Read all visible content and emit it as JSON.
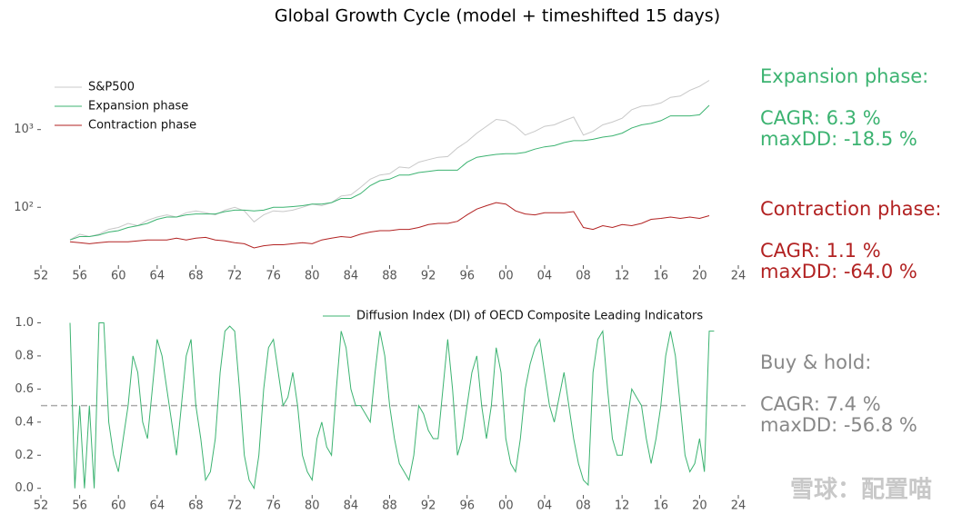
{
  "title": "Global Growth Cycle (model + timeshifted 15 days)",
  "chart_data": [
    {
      "type": "line",
      "log_y": true,
      "legend": "upper left",
      "xlim": [
        1952,
        2024
      ],
      "ylim": [
        18,
        5400
      ],
      "xticks": [
        {
          "value": 1952,
          "label": "52"
        },
        {
          "value": 1956,
          "label": "56"
        },
        {
          "value": 1960,
          "label": "60"
        },
        {
          "value": 1964,
          "label": "64"
        },
        {
          "value": 1968,
          "label": "68"
        },
        {
          "value": 1972,
          "label": "72"
        },
        {
          "value": 1976,
          "label": "76"
        },
        {
          "value": 1980,
          "label": "80"
        },
        {
          "value": 1984,
          "label": "84"
        },
        {
          "value": 1988,
          "label": "88"
        },
        {
          "value": 1992,
          "label": "92"
        },
        {
          "value": 1996,
          "label": "96"
        },
        {
          "value": 2000,
          "label": "00"
        },
        {
          "value": 2004,
          "label": "04"
        },
        {
          "value": 2008,
          "label": "08"
        },
        {
          "value": 2012,
          "label": "12"
        },
        {
          "value": 2016,
          "label": "16"
        },
        {
          "value": 2020,
          "label": "20"
        },
        {
          "value": 2024,
          "label": "24"
        }
      ],
      "yticks": [
        {
          "value": 100,
          "label": "10²"
        },
        {
          "value": 1000,
          "label": "10³"
        }
      ],
      "x": [
        1955,
        1956,
        1957,
        1958,
        1959,
        1960,
        1961,
        1962,
        1963,
        1964,
        1965,
        1966,
        1967,
        1968,
        1969,
        1970,
        1971,
        1972,
        1973,
        1974,
        1975,
        1976,
        1977,
        1978,
        1979,
        1980,
        1981,
        1982,
        1983,
        1984,
        1985,
        1986,
        1987,
        1988,
        1989,
        1990,
        1991,
        1992,
        1993,
        1994,
        1995,
        1996,
        1997,
        1998,
        1999,
        2000,
        2001,
        2002,
        2003,
        2004,
        2005,
        2006,
        2007,
        2008,
        2009,
        2010,
        2011,
        2012,
        2013,
        2014,
        2015,
        2016,
        2017,
        2018,
        2019,
        2020,
        2021
      ],
      "series": [
        {
          "name": "S&P500",
          "color": "#c8c8c8",
          "values": [
            38,
            45,
            42,
            45,
            52,
            55,
            62,
            58,
            68,
            75,
            80,
            75,
            85,
            90,
            85,
            80,
            92,
            100,
            90,
            65,
            80,
            90,
            88,
            92,
            100,
            110,
            105,
            115,
            140,
            145,
            180,
            230,
            260,
            270,
            330,
            320,
            380,
            410,
            440,
            450,
            580,
            700,
            900,
            1100,
            1350,
            1300,
            1100,
            850,
            950,
            1100,
            1150,
            1300,
            1450,
            850,
            950,
            1150,
            1250,
            1400,
            1800,
            2000,
            2050,
            2200,
            2600,
            2700,
            3200,
            3600,
            4300
          ]
        },
        {
          "name": "Expansion phase",
          "color": "#3cb371",
          "values": [
            38,
            42,
            42,
            44,
            48,
            50,
            55,
            58,
            62,
            70,
            75,
            75,
            80,
            82,
            82,
            82,
            88,
            92,
            92,
            90,
            92,
            100,
            100,
            102,
            105,
            110,
            110,
            115,
            130,
            130,
            150,
            190,
            220,
            230,
            260,
            260,
            280,
            290,
            300,
            300,
            300,
            380,
            440,
            460,
            480,
            490,
            490,
            510,
            560,
            600,
            620,
            680,
            720,
            720,
            750,
            800,
            830,
            900,
            1050,
            1150,
            1200,
            1300,
            1500,
            1500,
            1500,
            1550,
            2050
          ]
        },
        {
          "name": "Contraction phase",
          "color": "#b22222",
          "values": [
            36,
            35,
            34,
            35,
            36,
            36,
            36,
            37,
            38,
            38,
            38,
            40,
            38,
            40,
            41,
            38,
            37,
            35,
            34,
            30,
            32,
            33,
            33,
            34,
            35,
            34,
            38,
            40,
            42,
            41,
            45,
            48,
            50,
            50,
            52,
            52,
            55,
            60,
            62,
            62,
            66,
            80,
            95,
            105,
            115,
            110,
            90,
            82,
            80,
            85,
            85,
            85,
            88,
            55,
            52,
            58,
            55,
            60,
            58,
            62,
            70,
            72,
            75,
            72,
            75,
            72,
            78
          ]
        }
      ]
    },
    {
      "type": "line",
      "legend": "upper right",
      "hline": 0.5,
      "xlim": [
        1952,
        2024
      ],
      "ylim": [
        -0.04,
        1.03
      ],
      "xticks": [
        {
          "value": 1952,
          "label": "52"
        },
        {
          "value": 1956,
          "label": "56"
        },
        {
          "value": 1960,
          "label": "60"
        },
        {
          "value": 1964,
          "label": "64"
        },
        {
          "value": 1968,
          "label": "68"
        },
        {
          "value": 1972,
          "label": "72"
        },
        {
          "value": 1976,
          "label": "76"
        },
        {
          "value": 1980,
          "label": "80"
        },
        {
          "value": 1984,
          "label": "84"
        },
        {
          "value": 1988,
          "label": "88"
        },
        {
          "value": 1992,
          "label": "92"
        },
        {
          "value": 1996,
          "label": "96"
        },
        {
          "value": 2000,
          "label": "00"
        },
        {
          "value": 2004,
          "label": "04"
        },
        {
          "value": 2008,
          "label": "08"
        },
        {
          "value": 2012,
          "label": "12"
        },
        {
          "value": 2016,
          "label": "16"
        },
        {
          "value": 2020,
          "label": "20"
        },
        {
          "value": 2024,
          "label": "24"
        }
      ],
      "yticks": [
        {
          "value": 0,
          "label": "0.0"
        },
        0.2,
        0.4,
        0.6,
        0.8,
        {
          "value": 1,
          "label": "1.0"
        }
      ],
      "x": [
        1955,
        1955.5,
        1956,
        1956.5,
        1957,
        1957.5,
        1958,
        1958.5,
        1959,
        1959.5,
        1960,
        1960.5,
        1961,
        1961.5,
        1962,
        1962.5,
        1963,
        1963.5,
        1964,
        1964.5,
        1965,
        1965.5,
        1966,
        1966.5,
        1967,
        1967.5,
        1968,
        1968.5,
        1969,
        1969.5,
        1970,
        1970.5,
        1971,
        1971.5,
        1972,
        1972.5,
        1973,
        1973.5,
        1974,
        1974.5,
        1975,
        1975.5,
        1976,
        1976.5,
        1977,
        1977.5,
        1978,
        1978.5,
        1979,
        1979.5,
        1980,
        1980.5,
        1981,
        1981.5,
        1982,
        1982.5,
        1983,
        1983.5,
        1984,
        1984.5,
        1985,
        1985.5,
        1986,
        1986.5,
        1987,
        1987.5,
        1988,
        1988.5,
        1989,
        1989.5,
        1990,
        1990.5,
        1991,
        1991.5,
        1992,
        1992.5,
        1993,
        1993.5,
        1994,
        1994.5,
        1995,
        1995.5,
        1996,
        1996.5,
        1997,
        1997.5,
        1998,
        1998.5,
        1999,
        1999.5,
        2000,
        2000.5,
        2001,
        2001.5,
        2002,
        2002.5,
        2003,
        2003.5,
        2004,
        2004.5,
        2005,
        2005.5,
        2006,
        2006.5,
        2007,
        2007.5,
        2008,
        2008.5,
        2009,
        2009.5,
        2010,
        2010.5,
        2011,
        2011.5,
        2012,
        2012.5,
        2013,
        2013.5,
        2014,
        2014.5,
        2015,
        2015.5,
        2016,
        2016.5,
        2017,
        2017.5,
        2018,
        2018.5,
        2019,
        2019.5,
        2020,
        2020.5,
        2021,
        2021.5
      ],
      "series": [
        {
          "name": "Diffusion Index (DI) of OECD Composite Leading Indicators",
          "color": "#3cb371",
          "values": [
            1.0,
            0.0,
            0.5,
            0.0,
            0.5,
            0.0,
            1.0,
            1.0,
            0.4,
            0.2,
            0.1,
            0.3,
            0.5,
            0.8,
            0.7,
            0.4,
            0.3,
            0.6,
            0.9,
            0.8,
            0.6,
            0.4,
            0.2,
            0.5,
            0.8,
            0.9,
            0.5,
            0.3,
            0.05,
            0.1,
            0.3,
            0.7,
            0.95,
            0.98,
            0.95,
            0.6,
            0.2,
            0.05,
            0.0,
            0.2,
            0.6,
            0.85,
            0.9,
            0.7,
            0.5,
            0.55,
            0.7,
            0.5,
            0.2,
            0.1,
            0.05,
            0.3,
            0.4,
            0.25,
            0.2,
            0.6,
            0.95,
            0.85,
            0.6,
            0.5,
            0.5,
            0.45,
            0.4,
            0.7,
            0.95,
            0.8,
            0.5,
            0.3,
            0.15,
            0.1,
            0.05,
            0.2,
            0.5,
            0.45,
            0.35,
            0.3,
            0.3,
            0.6,
            0.9,
            0.6,
            0.2,
            0.3,
            0.5,
            0.7,
            0.8,
            0.5,
            0.3,
            0.5,
            0.85,
            0.7,
            0.3,
            0.15,
            0.1,
            0.3,
            0.6,
            0.75,
            0.85,
            0.9,
            0.7,
            0.5,
            0.4,
            0.55,
            0.7,
            0.5,
            0.3,
            0.15,
            0.05,
            0.02,
            0.7,
            0.9,
            0.95,
            0.6,
            0.3,
            0.2,
            0.2,
            0.4,
            0.6,
            0.55,
            0.5,
            0.3,
            0.15,
            0.3,
            0.5,
            0.8,
            0.95,
            0.8,
            0.5,
            0.2,
            0.1,
            0.15,
            0.3,
            0.1,
            0.95,
            0.95
          ]
        }
      ]
    }
  ],
  "annotations": [
    {
      "heading": "Expansion phase:",
      "cagr": "CAGR: 6.3 %",
      "maxdd": "maxDD: -18.5 %",
      "color": "#3cb371"
    },
    {
      "heading": "Contraction phase:",
      "cagr": "CAGR: 1.1 %",
      "maxdd": "maxDD: -64.0 %",
      "color": "#b22222"
    },
    {
      "heading": "Buy & hold:",
      "cagr": "CAGR: 7.4 %",
      "maxdd": "maxDD: -56.8 %",
      "color": "#888888"
    }
  ],
  "watermark": "雪球：配置喵"
}
